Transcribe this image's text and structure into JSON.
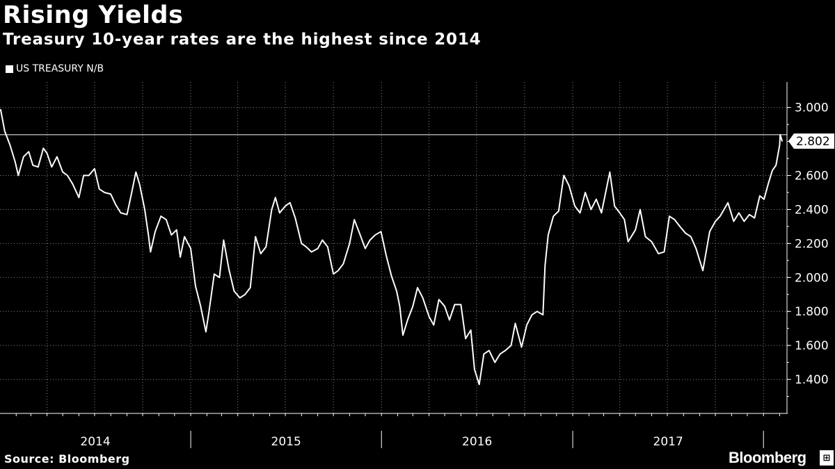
{
  "header": {
    "title": "Rising Yields",
    "subtitle": "Treasury 10-year rates are the highest since 2014"
  },
  "legend": {
    "label": "US TREASURY N/B"
  },
  "footer": {
    "source": "Source: Bloomberg",
    "brand": "Bloomberg",
    "brand_mark": "⊞"
  },
  "colors": {
    "background": "#000000",
    "line": "#ffffff",
    "grid": "#8a8a8a"
  },
  "chart_data": {
    "type": "line",
    "series": [
      {
        "name": "US TREASURY N/B",
        "points": [
          [
            "2014-01-02",
            2.99
          ],
          [
            "2014-01-10",
            2.86
          ],
          [
            "2014-01-20",
            2.78
          ],
          [
            "2014-01-30",
            2.68
          ],
          [
            "2014-02-05",
            2.6
          ],
          [
            "2014-02-15",
            2.71
          ],
          [
            "2014-02-25",
            2.74
          ],
          [
            "2014-03-05",
            2.66
          ],
          [
            "2014-03-15",
            2.65
          ],
          [
            "2014-03-25",
            2.76
          ],
          [
            "2014-04-01",
            2.73
          ],
          [
            "2014-04-10",
            2.65
          ],
          [
            "2014-04-20",
            2.71
          ],
          [
            "2014-05-01",
            2.62
          ],
          [
            "2014-05-10",
            2.6
          ],
          [
            "2014-05-20",
            2.55
          ],
          [
            "2014-06-01",
            2.47
          ],
          [
            "2014-06-10",
            2.6
          ],
          [
            "2014-06-20",
            2.6
          ],
          [
            "2014-07-01",
            2.64
          ],
          [
            "2014-07-10",
            2.52
          ],
          [
            "2014-07-20",
            2.5
          ],
          [
            "2014-08-01",
            2.49
          ],
          [
            "2014-08-10",
            2.43
          ],
          [
            "2014-08-20",
            2.38
          ],
          [
            "2014-09-01",
            2.37
          ],
          [
            "2014-09-10",
            2.5
          ],
          [
            "2014-09-18",
            2.62
          ],
          [
            "2014-09-25",
            2.55
          ],
          [
            "2014-10-05",
            2.4
          ],
          [
            "2014-10-12",
            2.25
          ],
          [
            "2014-10-16",
            2.15
          ],
          [
            "2014-10-25",
            2.27
          ],
          [
            "2014-11-05",
            2.36
          ],
          [
            "2014-11-15",
            2.34
          ],
          [
            "2014-11-25",
            2.25
          ],
          [
            "2014-12-05",
            2.28
          ],
          [
            "2014-12-12",
            2.12
          ],
          [
            "2014-12-20",
            2.24
          ],
          [
            "2015-01-01",
            2.17
          ],
          [
            "2015-01-10",
            1.95
          ],
          [
            "2015-01-20",
            1.83
          ],
          [
            "2015-01-30",
            1.68
          ],
          [
            "2015-02-05",
            1.8
          ],
          [
            "2015-02-15",
            2.02
          ],
          [
            "2015-02-25",
            2.0
          ],
          [
            "2015-03-05",
            2.22
          ],
          [
            "2015-03-15",
            2.05
          ],
          [
            "2015-03-25",
            1.92
          ],
          [
            "2015-04-05",
            1.88
          ],
          [
            "2015-04-15",
            1.9
          ],
          [
            "2015-04-25",
            1.94
          ],
          [
            "2015-05-05",
            2.24
          ],
          [
            "2015-05-15",
            2.14
          ],
          [
            "2015-05-25",
            2.18
          ],
          [
            "2015-06-05",
            2.4
          ],
          [
            "2015-06-12",
            2.47
          ],
          [
            "2015-06-20",
            2.38
          ],
          [
            "2015-07-01",
            2.42
          ],
          [
            "2015-07-10",
            2.44
          ],
          [
            "2015-07-20",
            2.35
          ],
          [
            "2015-08-01",
            2.2
          ],
          [
            "2015-08-10",
            2.18
          ],
          [
            "2015-08-20",
            2.15
          ],
          [
            "2015-09-01",
            2.17
          ],
          [
            "2015-09-10",
            2.22
          ],
          [
            "2015-09-20",
            2.18
          ],
          [
            "2015-10-01",
            2.02
          ],
          [
            "2015-10-10",
            2.04
          ],
          [
            "2015-10-20",
            2.08
          ],
          [
            "2015-11-01",
            2.2
          ],
          [
            "2015-11-10",
            2.34
          ],
          [
            "2015-11-20",
            2.26
          ],
          [
            "2015-12-01",
            2.17
          ],
          [
            "2015-12-10",
            2.22
          ],
          [
            "2015-12-20",
            2.25
          ],
          [
            "2015-12-31",
            2.27
          ],
          [
            "2016-01-10",
            2.13
          ],
          [
            "2016-01-20",
            2.01
          ],
          [
            "2016-01-30",
            1.92
          ],
          [
            "2016-02-05",
            1.83
          ],
          [
            "2016-02-11",
            1.66
          ],
          [
            "2016-02-20",
            1.75
          ],
          [
            "2016-03-01",
            1.83
          ],
          [
            "2016-03-10",
            1.94
          ],
          [
            "2016-03-20",
            1.88
          ],
          [
            "2016-04-01",
            1.77
          ],
          [
            "2016-04-10",
            1.72
          ],
          [
            "2016-04-20",
            1.87
          ],
          [
            "2016-05-01",
            1.83
          ],
          [
            "2016-05-10",
            1.75
          ],
          [
            "2016-05-20",
            1.84
          ],
          [
            "2016-06-01",
            1.84
          ],
          [
            "2016-06-10",
            1.64
          ],
          [
            "2016-06-20",
            1.69
          ],
          [
            "2016-06-27",
            1.46
          ],
          [
            "2016-07-06",
            1.37
          ],
          [
            "2016-07-15",
            1.55
          ],
          [
            "2016-07-25",
            1.57
          ],
          [
            "2016-08-05",
            1.5
          ],
          [
            "2016-08-15",
            1.55
          ],
          [
            "2016-08-25",
            1.57
          ],
          [
            "2016-09-05",
            1.6
          ],
          [
            "2016-09-13",
            1.73
          ],
          [
            "2016-09-25",
            1.59
          ],
          [
            "2016-10-05",
            1.72
          ],
          [
            "2016-10-15",
            1.78
          ],
          [
            "2016-10-25",
            1.8
          ],
          [
            "2016-11-05",
            1.78
          ],
          [
            "2016-11-09",
            2.07
          ],
          [
            "2016-11-15",
            2.25
          ],
          [
            "2016-11-25",
            2.36
          ],
          [
            "2016-12-05",
            2.39
          ],
          [
            "2016-12-15",
            2.6
          ],
          [
            "2016-12-25",
            2.54
          ],
          [
            "2017-01-05",
            2.42
          ],
          [
            "2017-01-15",
            2.38
          ],
          [
            "2017-01-25",
            2.5
          ],
          [
            "2017-02-05",
            2.4
          ],
          [
            "2017-02-15",
            2.46
          ],
          [
            "2017-02-25",
            2.38
          ],
          [
            "2017-03-05",
            2.5
          ],
          [
            "2017-03-13",
            2.62
          ],
          [
            "2017-03-22",
            2.42
          ],
          [
            "2017-04-01",
            2.38
          ],
          [
            "2017-04-10",
            2.34
          ],
          [
            "2017-04-17",
            2.21
          ],
          [
            "2017-05-01",
            2.28
          ],
          [
            "2017-05-10",
            2.4
          ],
          [
            "2017-05-20",
            2.24
          ],
          [
            "2017-06-01",
            2.21
          ],
          [
            "2017-06-14",
            2.14
          ],
          [
            "2017-06-25",
            2.15
          ],
          [
            "2017-07-05",
            2.36
          ],
          [
            "2017-07-15",
            2.34
          ],
          [
            "2017-07-25",
            2.3
          ],
          [
            "2017-08-05",
            2.26
          ],
          [
            "2017-08-15",
            2.24
          ],
          [
            "2017-08-25",
            2.17
          ],
          [
            "2017-09-07",
            2.04
          ],
          [
            "2017-09-20",
            2.27
          ],
          [
            "2017-10-01",
            2.33
          ],
          [
            "2017-10-10",
            2.36
          ],
          [
            "2017-10-25",
            2.44
          ],
          [
            "2017-11-05",
            2.33
          ],
          [
            "2017-11-15",
            2.38
          ],
          [
            "2017-11-25",
            2.33
          ],
          [
            "2017-12-05",
            2.37
          ],
          [
            "2017-12-15",
            2.35
          ],
          [
            "2017-12-25",
            2.48
          ],
          [
            "2018-01-02",
            2.46
          ],
          [
            "2018-01-10",
            2.55
          ],
          [
            "2018-01-18",
            2.63
          ],
          [
            "2018-01-25",
            2.66
          ],
          [
            "2018-02-01",
            2.78
          ],
          [
            "2018-02-02",
            2.84
          ],
          [
            "2018-02-06",
            2.8
          ]
        ]
      }
    ],
    "y_ticks": [
      "1.400",
      "1.600",
      "1.800",
      "2.000",
      "2.200",
      "2.400",
      "2.600",
      "3.000"
    ],
    "y_tick_values": [
      1.4,
      1.6,
      1.8,
      2.0,
      2.2,
      2.4,
      2.6,
      3.0
    ],
    "ylim": [
      1.2,
      3.15
    ],
    "x_ticks": [
      "2014",
      "2015",
      "2016",
      "2017"
    ],
    "xlim": [
      "2014-01-01",
      "2018-02-15"
    ],
    "last_value": {
      "label": "2.802",
      "value": 2.802
    },
    "reference_line": 2.84,
    "grid": true,
    "y_axis_side": "right",
    "legend_position": "top-left"
  }
}
